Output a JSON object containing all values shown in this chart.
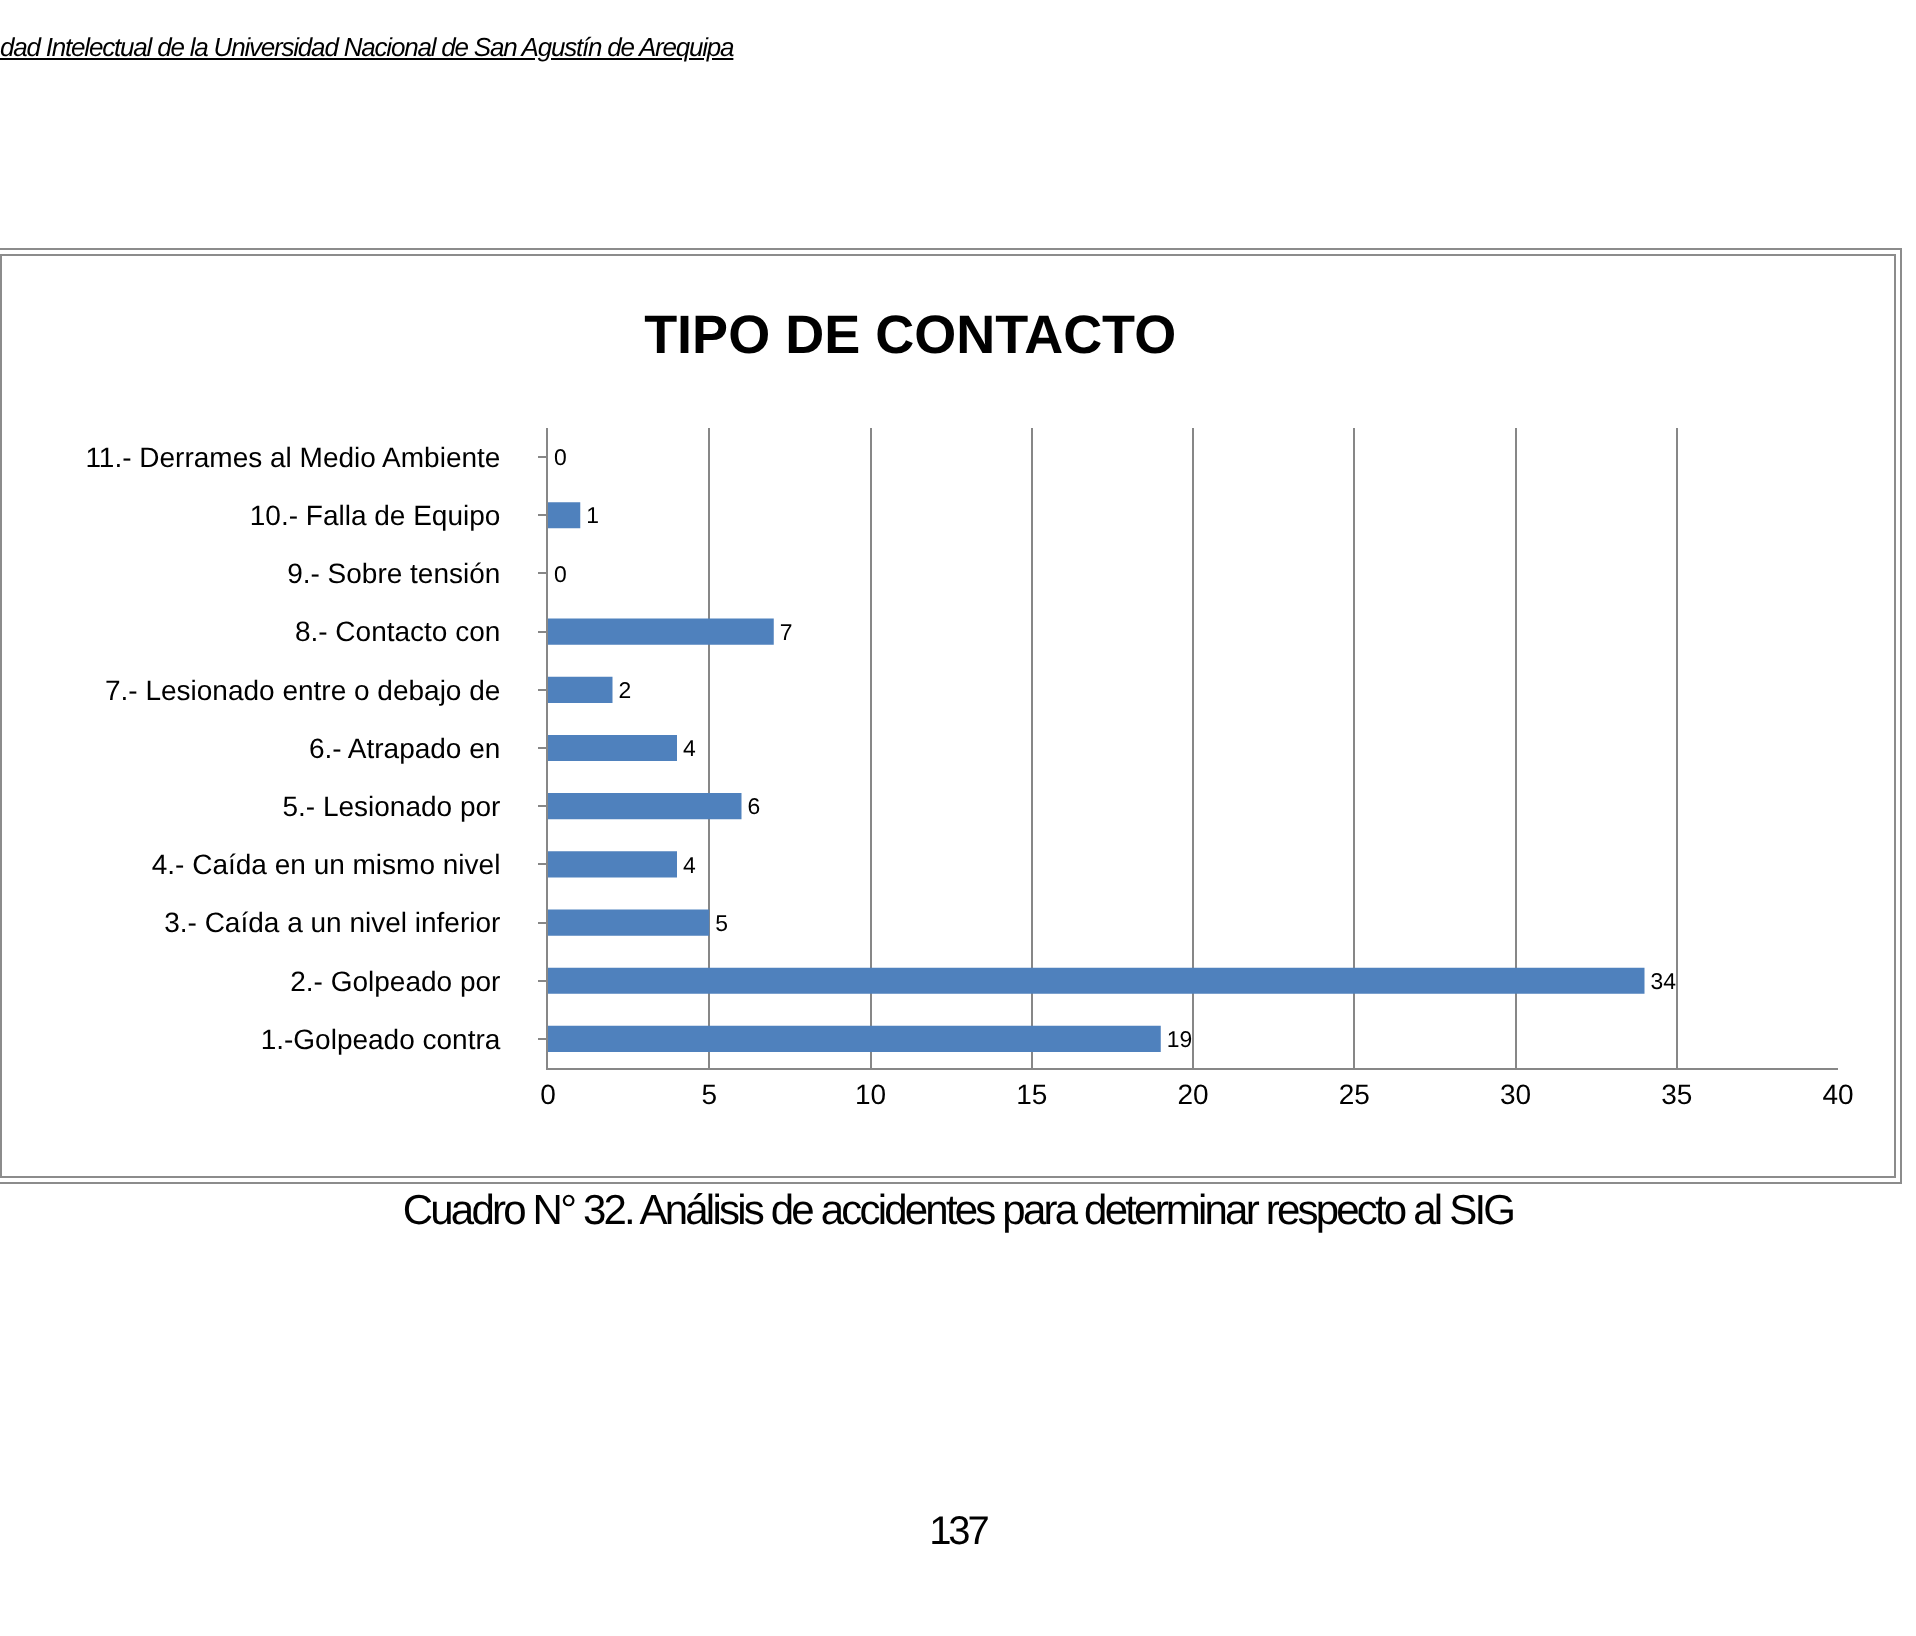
{
  "chart_data": {
    "type": "bar",
    "orientation": "horizontal",
    "title": "TIPO DE CONTACTO",
    "categories": [
      "11.- Derrames al Medio Ambiente",
      "10.- Falla de Equipo",
      "9.- Sobre tensión",
      "8.- Contacto con",
      "7.- Lesionado entre o debajo de",
      "6.- Atrapado en",
      "5.- Lesionado por",
      "4.- Caída en un mismo nivel",
      "3.- Caída a un nivel inferior",
      "2.- Golpeado por",
      "1.-Golpeado contra"
    ],
    "values": [
      0,
      1,
      0,
      7,
      2,
      4,
      6,
      4,
      5,
      34,
      19
    ],
    "color": "#4f81bd",
    "data_labels": true,
    "xlim": [
      0,
      40
    ],
    "xticks": [
      0,
      5,
      10,
      15,
      20,
      25,
      30,
      35,
      40
    ],
    "grid": "x",
    "annotations": [
      "dad Intelectual de la Universidad Nacional de San Agustín de Arequipa",
      "Cuadro N° 32. Análisis de accidentes para determinar respecto al SIG",
      "137"
    ]
  }
}
